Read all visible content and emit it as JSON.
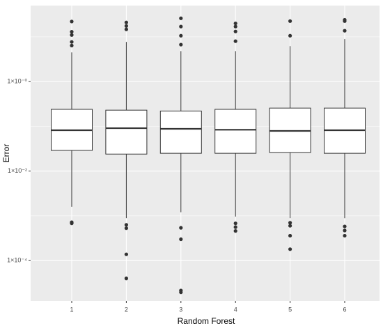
{
  "chart_data": {
    "type": "boxplot",
    "xlabel": "Random Forest",
    "ylabel": "Error",
    "categories": [
      "1",
      "2",
      "3",
      "4",
      "5",
      "6"
    ],
    "log_y": true,
    "ylim": [
      1.26e-05,
      50
    ],
    "yticks": [
      {
        "value": 1,
        "label": "1×10⁻⁰"
      },
      {
        "value": 0.01,
        "label": "1×10⁻²"
      },
      {
        "value": 0.0001,
        "label": "1×10⁻⁴"
      }
    ],
    "minor_yticks": [
      10,
      0.1,
      0.001
    ],
    "grid": true,
    "box_fill": "#ffffff",
    "box_stroke": "#333333",
    "outlier_color": "#333333",
    "boxes": [
      {
        "min": 0.0016,
        "q1": 0.029,
        "median": 0.082,
        "q3": 0.24,
        "max": 4.5,
        "outliers": [
          22,
          13,
          11,
          7.7,
          6.4,
          0.00072,
          0.00068
        ]
      },
      {
        "min": 0.00089,
        "q1": 0.024,
        "median": 0.091,
        "q3": 0.23,
        "max": 7.7,
        "outliers": [
          21,
          17.5,
          14.7,
          0.00063,
          0.00053,
          0.000138,
          4e-05
        ]
      },
      {
        "min": 0.0012,
        "q1": 0.025,
        "median": 0.088,
        "q3": 0.22,
        "max": 4.8,
        "outliers": [
          26,
          17,
          10.6,
          6.7,
          0.00054,
          0.0003,
          2.15e-05,
          1.96e-05
        ]
      },
      {
        "min": 0.00096,
        "q1": 0.025,
        "median": 0.084,
        "q3": 0.24,
        "max": 4.8,
        "outliers": [
          20,
          17,
          13.2,
          8,
          0.00068,
          0.00056,
          0.00046
        ]
      },
      {
        "min": 0.00089,
        "q1": 0.026,
        "median": 0.079,
        "q3": 0.256,
        "max": 6.2,
        "outliers": [
          22.5,
          10.6,
          0.0007,
          0.0006,
          0.00036,
          0.00018
        ]
      },
      {
        "min": 0.00089,
        "q1": 0.025,
        "median": 0.082,
        "q3": 0.256,
        "max": 8.9,
        "outliers": [
          24,
          22.5,
          13.7,
          0.00058,
          0.00047,
          0.00036
        ]
      }
    ]
  }
}
